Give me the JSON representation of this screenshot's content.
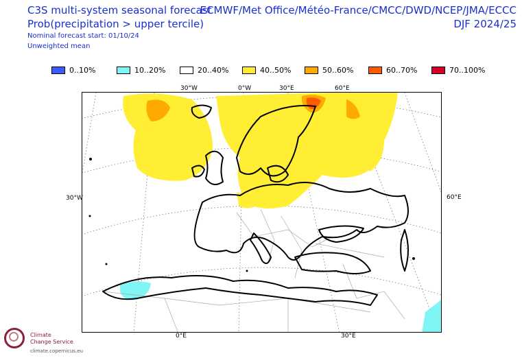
{
  "header": {
    "title_line1": "C3S multi-system seasonal forecast",
    "title_line2": "Prob(precipitation > upper tercile)",
    "subtitle_line1": "Nominal forecast start: 01/10/24",
    "subtitle_line2": "Unweighted mean",
    "systems": "ECMWF/Met Office/Météo-France/CMCC/DWD/NCEP/JMA/ECCC",
    "season": "DJF 2024/25"
  },
  "legend": [
    {
      "label": "0..10%",
      "color": "#3a5cff"
    },
    {
      "label": "10..20%",
      "color": "#7ff5f5"
    },
    {
      "label": "20..40%",
      "color": "#ffffff"
    },
    {
      "label": "40..50%",
      "color": "#ffee33"
    },
    {
      "label": "50..60%",
      "color": "#ffaa00"
    },
    {
      "label": "60..70%",
      "color": "#ff5a00"
    },
    {
      "label": "70..100%",
      "color": "#d3002a"
    }
  ],
  "map": {
    "top_labels": [
      "30°W",
      "0°W",
      "30°E",
      "60°E"
    ],
    "bottom_labels": [
      "0°E",
      "30°E"
    ],
    "left_label": "30°W",
    "right_label": "60°E"
  },
  "logo": {
    "line1": "Climate",
    "line2": "Change Service",
    "url": "climate.copernicus.eu"
  }
}
